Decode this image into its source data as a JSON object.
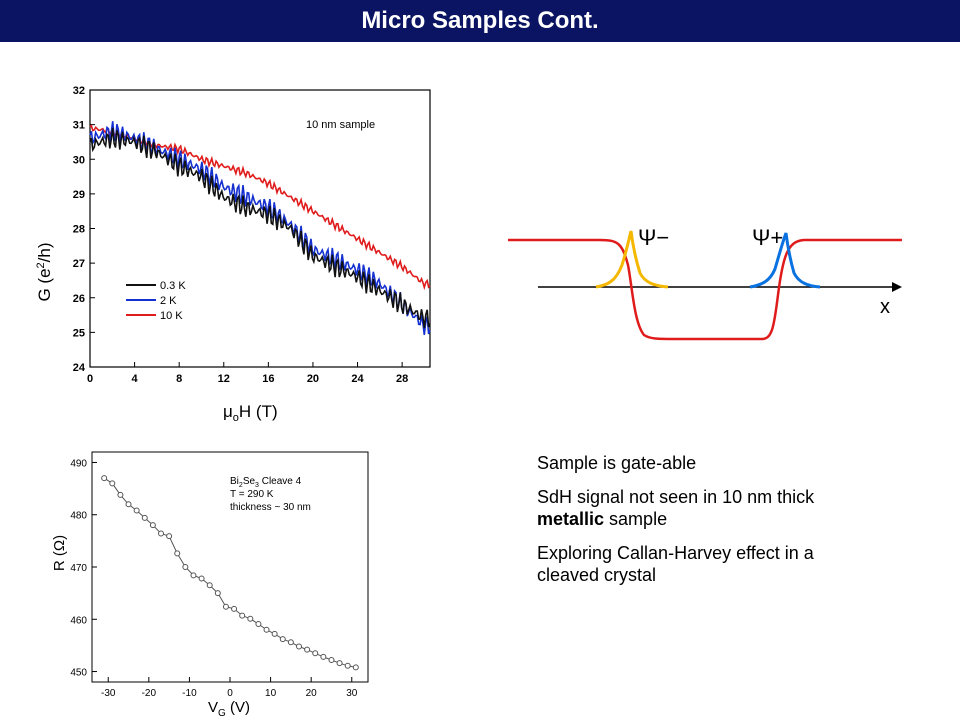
{
  "slide": {
    "title": "Micro Samples Cont."
  },
  "colors": {
    "title_bar": "#0a1462",
    "red": "#e01b1b",
    "blue": "#1530d0",
    "black": "#111111",
    "orange": "#f5b800",
    "cyan": "#0a72e0"
  },
  "bullets": [
    {
      "text": "Sample is gate-able"
    },
    {
      "pre": "SdH signal not seen in 10 nm thick ",
      "bold": "metallic",
      "post": " sample"
    },
    {
      "text": "Exploring Callan-Harvey effect in a cleaved crystal"
    }
  ],
  "diagram": {
    "psi_minus": "Ψ−",
    "psi_plus": "Ψ+",
    "x_label": "x"
  },
  "chart_data": [
    {
      "type": "line",
      "annotation": "10 nm sample",
      "xlabel": "μoH (T)",
      "ylabel": "G (e2/h)",
      "xlim": [
        0,
        30.5
      ],
      "ylim": [
        24,
        32
      ],
      "xticks": [
        0,
        4,
        8,
        12,
        16,
        20,
        24,
        28
      ],
      "yticks": [
        24,
        25,
        26,
        27,
        28,
        29,
        30,
        31,
        32
      ],
      "legend_position": "bottom-left",
      "series": [
        {
          "name": "0.3 K",
          "color": "#111111",
          "x": [
            0,
            2,
            4,
            6,
            8,
            10,
            12,
            14,
            16,
            18,
            20,
            22,
            24,
            26,
            28,
            30
          ],
          "y": [
            30.4,
            30.6,
            30.5,
            30.2,
            29.8,
            29.5,
            28.9,
            28.6,
            28.4,
            28.0,
            27.2,
            26.9,
            26.6,
            26.2,
            25.8,
            25.4
          ]
        },
        {
          "name": "2 K",
          "color": "#1530d0",
          "x": [
            0,
            2,
            4,
            6,
            8,
            10,
            12,
            14,
            16,
            18,
            20,
            22,
            24,
            26,
            28,
            30
          ],
          "y": [
            30.6,
            30.8,
            30.6,
            30.3,
            30.0,
            29.7,
            29.2,
            28.9,
            28.6,
            28.1,
            27.4,
            27.1,
            26.8,
            26.4,
            25.8,
            25.2
          ]
        },
        {
          "name": "10 K",
          "color": "#e01b1b",
          "x": [
            0,
            2,
            4,
            6,
            8,
            10,
            12,
            14,
            16,
            18,
            20,
            22,
            24,
            26,
            28,
            30
          ],
          "y": [
            30.9,
            30.8,
            30.6,
            30.4,
            30.3,
            30.0,
            29.8,
            29.6,
            29.3,
            28.9,
            28.5,
            28.1,
            27.7,
            27.3,
            26.9,
            26.4
          ]
        }
      ]
    },
    {
      "type": "scatter",
      "annotation": {
        "line1_a": "Bi",
        "line1_sub1": "2",
        "line1_b": "Se",
        "line1_sub2": "3",
        "line1_c": " Cleave 4",
        "line2": "T = 290 K",
        "line3": "thickness ~ 30 nm"
      },
      "xlabel": "VG (V)",
      "ylabel": "R (Ω)",
      "xlim": [
        -34,
        34
      ],
      "ylim": [
        448,
        492
      ],
      "xticks": [
        -30,
        -20,
        -10,
        0,
        10,
        20,
        30
      ],
      "yticks": [
        450,
        460,
        470,
        480,
        490
      ],
      "series": [
        {
          "x": [
            -31,
            -29,
            -27,
            -25,
            -23,
            -21,
            -19,
            -17,
            -15,
            -13,
            -11,
            -9,
            -7,
            -5,
            -3,
            -1,
            1,
            3,
            5,
            7,
            9,
            11,
            13,
            15,
            17,
            19,
            21,
            23,
            25,
            27,
            29,
            31
          ],
          "y": [
            487.0,
            486.0,
            483.8,
            482.0,
            480.8,
            479.4,
            478.0,
            476.4,
            475.9,
            472.6,
            470.0,
            468.4,
            467.8,
            466.5,
            465.0,
            462.4,
            462.0,
            460.7,
            460.1,
            459.1,
            458.0,
            457.2,
            456.2,
            455.6,
            454.8,
            454.2,
            453.5,
            452.8,
            452.2,
            451.6,
            451.1,
            450.8
          ]
        }
      ]
    }
  ]
}
